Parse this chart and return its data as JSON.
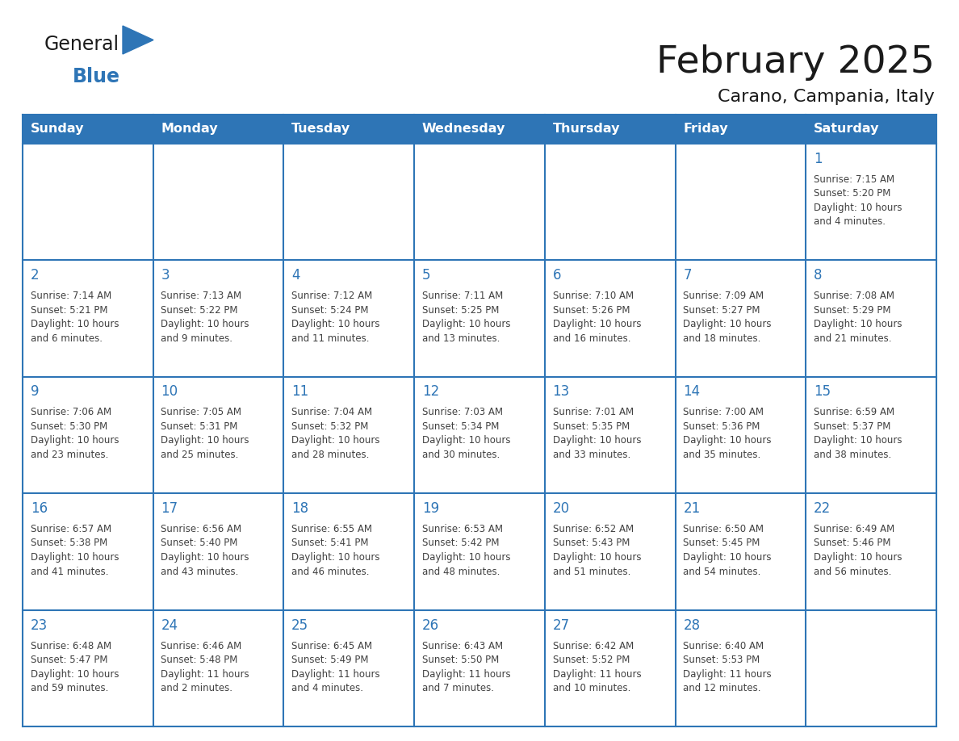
{
  "title": "February 2025",
  "subtitle": "Carano, Campania, Italy",
  "header_bg": "#2E75B6",
  "header_text_color": "#FFFFFF",
  "cell_bg": "#FFFFFF",
  "cell_border_top_color": "#2E75B6",
  "cell_border_inner_color": "#5B9BD5",
  "day_number_color": "#2E75B6",
  "detail_text_color": "#404040",
  "days_of_week": [
    "Sunday",
    "Monday",
    "Tuesday",
    "Wednesday",
    "Thursday",
    "Friday",
    "Saturday"
  ],
  "calendar_data": [
    [
      null,
      null,
      null,
      null,
      null,
      null,
      {
        "day": 1,
        "sunrise": "7:15 AM",
        "sunset": "5:20 PM",
        "daylight": "10 hours\nand 4 minutes."
      }
    ],
    [
      {
        "day": 2,
        "sunrise": "7:14 AM",
        "sunset": "5:21 PM",
        "daylight": "10 hours\nand 6 minutes."
      },
      {
        "day": 3,
        "sunrise": "7:13 AM",
        "sunset": "5:22 PM",
        "daylight": "10 hours\nand 9 minutes."
      },
      {
        "day": 4,
        "sunrise": "7:12 AM",
        "sunset": "5:24 PM",
        "daylight": "10 hours\nand 11 minutes."
      },
      {
        "day": 5,
        "sunrise": "7:11 AM",
        "sunset": "5:25 PM",
        "daylight": "10 hours\nand 13 minutes."
      },
      {
        "day": 6,
        "sunrise": "7:10 AM",
        "sunset": "5:26 PM",
        "daylight": "10 hours\nand 16 minutes."
      },
      {
        "day": 7,
        "sunrise": "7:09 AM",
        "sunset": "5:27 PM",
        "daylight": "10 hours\nand 18 minutes."
      },
      {
        "day": 8,
        "sunrise": "7:08 AM",
        "sunset": "5:29 PM",
        "daylight": "10 hours\nand 21 minutes."
      }
    ],
    [
      {
        "day": 9,
        "sunrise": "7:06 AM",
        "sunset": "5:30 PM",
        "daylight": "10 hours\nand 23 minutes."
      },
      {
        "day": 10,
        "sunrise": "7:05 AM",
        "sunset": "5:31 PM",
        "daylight": "10 hours\nand 25 minutes."
      },
      {
        "day": 11,
        "sunrise": "7:04 AM",
        "sunset": "5:32 PM",
        "daylight": "10 hours\nand 28 minutes."
      },
      {
        "day": 12,
        "sunrise": "7:03 AM",
        "sunset": "5:34 PM",
        "daylight": "10 hours\nand 30 minutes."
      },
      {
        "day": 13,
        "sunrise": "7:01 AM",
        "sunset": "5:35 PM",
        "daylight": "10 hours\nand 33 minutes."
      },
      {
        "day": 14,
        "sunrise": "7:00 AM",
        "sunset": "5:36 PM",
        "daylight": "10 hours\nand 35 minutes."
      },
      {
        "day": 15,
        "sunrise": "6:59 AM",
        "sunset": "5:37 PM",
        "daylight": "10 hours\nand 38 minutes."
      }
    ],
    [
      {
        "day": 16,
        "sunrise": "6:57 AM",
        "sunset": "5:38 PM",
        "daylight": "10 hours\nand 41 minutes."
      },
      {
        "day": 17,
        "sunrise": "6:56 AM",
        "sunset": "5:40 PM",
        "daylight": "10 hours\nand 43 minutes."
      },
      {
        "day": 18,
        "sunrise": "6:55 AM",
        "sunset": "5:41 PM",
        "daylight": "10 hours\nand 46 minutes."
      },
      {
        "day": 19,
        "sunrise": "6:53 AM",
        "sunset": "5:42 PM",
        "daylight": "10 hours\nand 48 minutes."
      },
      {
        "day": 20,
        "sunrise": "6:52 AM",
        "sunset": "5:43 PM",
        "daylight": "10 hours\nand 51 minutes."
      },
      {
        "day": 21,
        "sunrise": "6:50 AM",
        "sunset": "5:45 PM",
        "daylight": "10 hours\nand 54 minutes."
      },
      {
        "day": 22,
        "sunrise": "6:49 AM",
        "sunset": "5:46 PM",
        "daylight": "10 hours\nand 56 minutes."
      }
    ],
    [
      {
        "day": 23,
        "sunrise": "6:48 AM",
        "sunset": "5:47 PM",
        "daylight": "10 hours\nand 59 minutes."
      },
      {
        "day": 24,
        "sunrise": "6:46 AM",
        "sunset": "5:48 PM",
        "daylight": "11 hours\nand 2 minutes."
      },
      {
        "day": 25,
        "sunrise": "6:45 AM",
        "sunset": "5:49 PM",
        "daylight": "11 hours\nand 4 minutes."
      },
      {
        "day": 26,
        "sunrise": "6:43 AM",
        "sunset": "5:50 PM",
        "daylight": "11 hours\nand 7 minutes."
      },
      {
        "day": 27,
        "sunrise": "6:42 AM",
        "sunset": "5:52 PM",
        "daylight": "11 hours\nand 10 minutes."
      },
      {
        "day": 28,
        "sunrise": "6:40 AM",
        "sunset": "5:53 PM",
        "daylight": "11 hours\nand 12 minutes."
      },
      null
    ]
  ],
  "logo_color_general": "#1a1a1a",
  "logo_color_blue": "#2E75B6",
  "logo_triangle_color": "#2E75B6",
  "fig_width": 11.88,
  "fig_height": 9.18,
  "dpi": 100
}
